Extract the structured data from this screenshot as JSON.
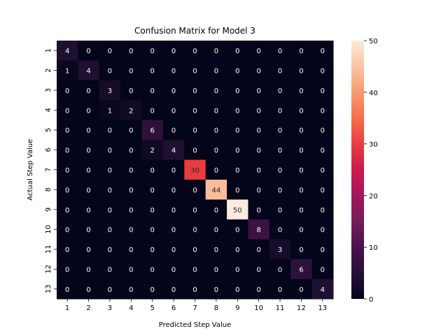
{
  "chart_data": {
    "type": "heatmap",
    "title": "Confusion Matrix for Model 3",
    "xlabel": "Predicted Step Value",
    "ylabel": "Actual Step Value",
    "x_categories": [
      "1",
      "2",
      "3",
      "4",
      "5",
      "6",
      "7",
      "8",
      "9",
      "10",
      "11",
      "12",
      "13"
    ],
    "y_categories": [
      "1",
      "2",
      "3",
      "4",
      "5",
      "6",
      "7",
      "8",
      "9",
      "10",
      "11",
      "12",
      "13"
    ],
    "matrix": [
      [
        4,
        0,
        0,
        0,
        0,
        0,
        0,
        0,
        0,
        0,
        0,
        0,
        0
      ],
      [
        1,
        4,
        0,
        0,
        0,
        0,
        0,
        0,
        0,
        0,
        0,
        0,
        0
      ],
      [
        0,
        0,
        3,
        0,
        0,
        0,
        0,
        0,
        0,
        0,
        0,
        0,
        0
      ],
      [
        0,
        0,
        1,
        2,
        0,
        0,
        0,
        0,
        0,
        0,
        0,
        0,
        0
      ],
      [
        0,
        0,
        0,
        0,
        6,
        0,
        0,
        0,
        0,
        0,
        0,
        0,
        0
      ],
      [
        0,
        0,
        0,
        0,
        2,
        4,
        0,
        0,
        0,
        0,
        0,
        0,
        0
      ],
      [
        0,
        0,
        0,
        0,
        0,
        0,
        30,
        0,
        0,
        0,
        0,
        0,
        0
      ],
      [
        0,
        0,
        0,
        0,
        0,
        0,
        0,
        44,
        0,
        0,
        0,
        0,
        0
      ],
      [
        0,
        0,
        0,
        0,
        0,
        0,
        0,
        0,
        50,
        0,
        0,
        0,
        0
      ],
      [
        0,
        0,
        0,
        0,
        0,
        0,
        0,
        0,
        0,
        8,
        0,
        0,
        0
      ],
      [
        0,
        0,
        0,
        0,
        0,
        0,
        0,
        0,
        0,
        0,
        3,
        0,
        0
      ],
      [
        0,
        0,
        0,
        0,
        0,
        0,
        0,
        0,
        0,
        0,
        0,
        6,
        0
      ],
      [
        0,
        0,
        0,
        0,
        0,
        0,
        0,
        0,
        0,
        0,
        0,
        0,
        4
      ]
    ],
    "colormap": "rocket",
    "colorbar": {
      "range": [
        0,
        50
      ],
      "ticks": [
        0,
        10,
        20,
        30,
        40,
        50
      ]
    },
    "grid": false,
    "legend": "colorbar-right"
  }
}
